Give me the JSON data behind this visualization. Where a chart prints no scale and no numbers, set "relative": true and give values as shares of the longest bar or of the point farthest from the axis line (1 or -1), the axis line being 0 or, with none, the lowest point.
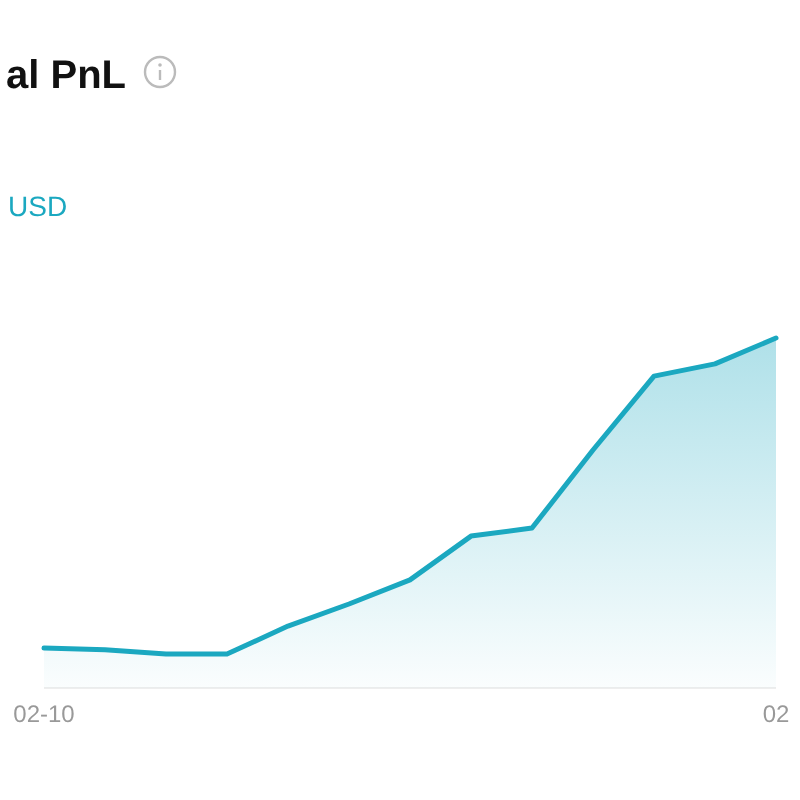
{
  "chart_data": {
    "type": "area",
    "title": "al PnL",
    "ylabel": "USD",
    "relative": true,
    "categories": [
      "02-10",
      null,
      null,
      null,
      null,
      null,
      null,
      null,
      null,
      null,
      null,
      null,
      "02"
    ],
    "series": [
      {
        "color": "#1ba8c0",
        "values": [
          0.114,
          0.109,
          0.097,
          0.097,
          0.177,
          0.24,
          0.309,
          0.434,
          0.457,
          0.68,
          0.891,
          0.926,
          1
        ]
      }
    ]
  }
}
